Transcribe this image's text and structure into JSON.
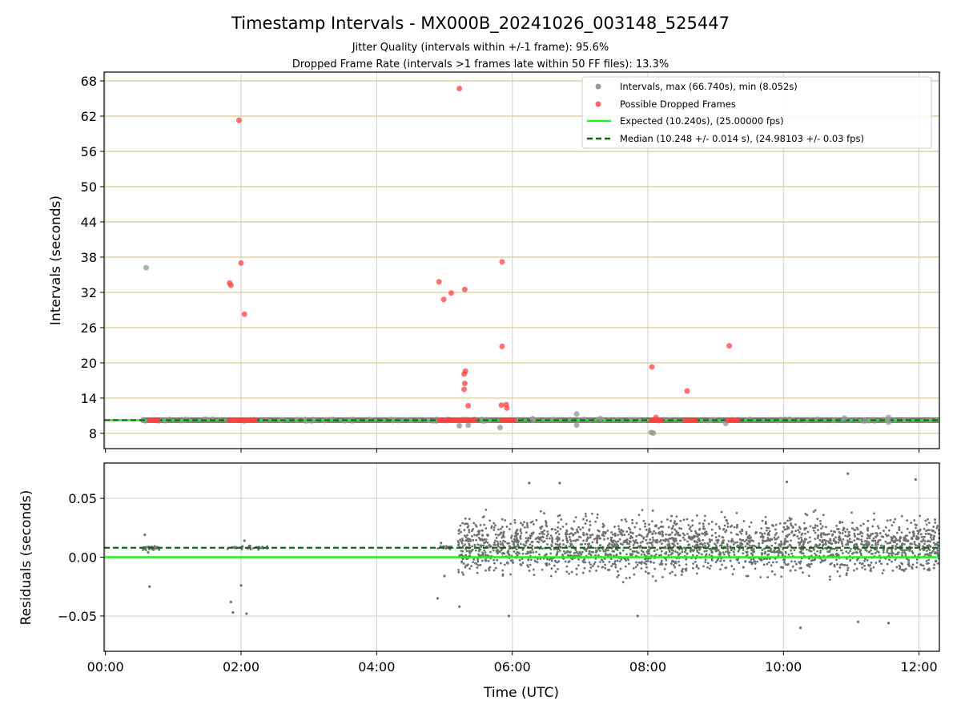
{
  "chart_data": [
    {
      "type": "scatter",
      "title": "Timestamp Intervals - MX000B_20241026_003148_525447",
      "subtitle_lines": [
        "Jitter Quality (intervals within +/-1 frame): 95.6%",
        "Dropped Frame Rate (intervals >1 frames late within 50 FF files): 13.3%"
      ],
      "xlabel": "",
      "ylabel": "Intervals (seconds)",
      "x_unit": "hours UTC",
      "xlim": [
        -0.02,
        12.3
      ],
      "ylim": [
        5.4,
        69.5
      ],
      "yticks": [
        8,
        14,
        20,
        26,
        32,
        38,
        44,
        50,
        56,
        62,
        68
      ],
      "ytick_labels": [
        "8",
        "14",
        "20",
        "26",
        "32",
        "38",
        "44",
        "50",
        "56",
        "62",
        "68"
      ],
      "xticks": [
        0,
        2,
        4,
        6,
        8,
        10,
        12
      ],
      "xtick_labels": [
        "00:00",
        "02:00",
        "04:00",
        "06:00",
        "08:00",
        "10:00",
        "12:00"
      ],
      "show_xtick_labels": false,
      "grid": "x-vertical, y-horizontal golden",
      "legend_position": "top-right",
      "legend": [
        "Intervals, max (66.740s), min (8.052s)",
        "Possible Dropped Frames",
        "Expected (10.240s), (25.00000 fps)",
        "Median (10.248 +/- 0.014 s), (24.98103 +/- 0.03 fps)"
      ],
      "lines": {
        "expected": 10.24,
        "median": 10.248
      },
      "colors": {
        "intervals": "#9a9a9a",
        "dropped": "#ff4040",
        "expected": "#22ee22",
        "median": "#0b6b0b",
        "grid_h": "#d8c78a",
        "grid_v": "#cfcfcf",
        "band": "#5a6a5a"
      },
      "intervals_band": {
        "x_start": 0.55,
        "x_end": 12.3,
        "y": 10.248
      },
      "intervals": [
        {
          "x": 0.6,
          "y": 36.2
        },
        {
          "x": 5.22,
          "y": 9.3
        },
        {
          "x": 5.35,
          "y": 9.4
        },
        {
          "x": 5.82,
          "y": 9.0
        },
        {
          "x": 6.3,
          "y": 10.5
        },
        {
          "x": 6.95,
          "y": 11.3
        },
        {
          "x": 6.95,
          "y": 9.4
        },
        {
          "x": 7.3,
          "y": 10.5
        },
        {
          "x": 8.05,
          "y": 8.15
        },
        {
          "x": 8.08,
          "y": 8.05
        },
        {
          "x": 9.15,
          "y": 9.7
        },
        {
          "x": 10.9,
          "y": 10.6
        },
        {
          "x": 11.55,
          "y": 10.7
        },
        {
          "x": 11.55,
          "y": 9.9
        },
        {
          "x": 11.2,
          "y": 10.1
        }
      ],
      "dropped_clusters": [
        {
          "x0": 0.65,
          "x1": 0.78,
          "y": 10.25
        },
        {
          "x0": 1.82,
          "x1": 2.22,
          "y": 10.25
        },
        {
          "x0": 4.92,
          "x1": 5.48,
          "y": 10.25
        },
        {
          "x0": 5.85,
          "x1": 6.05,
          "y": 10.25
        },
        {
          "x0": 8.05,
          "x1": 8.22,
          "y": 10.25
        },
        {
          "x0": 8.55,
          "x1": 8.72,
          "y": 10.25
        },
        {
          "x0": 9.18,
          "x1": 9.35,
          "y": 10.25
        }
      ],
      "dropped": [
        {
          "x": 1.97,
          "y": 61.3
        },
        {
          "x": 1.83,
          "y": 33.6
        },
        {
          "x": 1.85,
          "y": 33.2
        },
        {
          "x": 2.0,
          "y": 37.0
        },
        {
          "x": 2.05,
          "y": 28.3
        },
        {
          "x": 4.92,
          "y": 33.8
        },
        {
          "x": 4.99,
          "y": 30.8
        },
        {
          "x": 5.1,
          "y": 31.9
        },
        {
          "x": 5.22,
          "y": 66.7
        },
        {
          "x": 5.3,
          "y": 32.5
        },
        {
          "x": 5.29,
          "y": 18.1
        },
        {
          "x": 5.31,
          "y": 18.6
        },
        {
          "x": 5.3,
          "y": 16.5
        },
        {
          "x": 5.29,
          "y": 15.5
        },
        {
          "x": 5.35,
          "y": 12.7
        },
        {
          "x": 5.85,
          "y": 37.2
        },
        {
          "x": 5.85,
          "y": 22.8
        },
        {
          "x": 5.84,
          "y": 12.8
        },
        {
          "x": 5.91,
          "y": 12.9
        },
        {
          "x": 5.92,
          "y": 12.3
        },
        {
          "x": 8.06,
          "y": 19.3
        },
        {
          "x": 8.58,
          "y": 15.2
        },
        {
          "x": 9.2,
          "y": 22.9
        },
        {
          "x": 8.12,
          "y": 10.7
        }
      ]
    },
    {
      "type": "scatter",
      "title": "",
      "xlabel": "Time (UTC)",
      "ylabel": "Residuals (seconds)",
      "xlim": [
        -0.02,
        12.3
      ],
      "ylim": [
        -0.08,
        0.08
      ],
      "yticks": [
        -0.05,
        0.0,
        0.05
      ],
      "ytick_labels": [
        "−0.05",
        "0.00",
        "0.05"
      ],
      "xticks": [
        0,
        2,
        4,
        6,
        8,
        10,
        12
      ],
      "xtick_labels": [
        "00:00",
        "02:00",
        "04:00",
        "06:00",
        "08:00",
        "10:00",
        "12:00"
      ],
      "grid": "both",
      "lines": {
        "expected": 0.0,
        "median": 0.008
      },
      "colors": {
        "points": "#707070",
        "expected": "#22ee22",
        "median": "#0b6b0b",
        "grid": "#cfcfcf"
      },
      "noise_segments": [
        {
          "x0": 0.55,
          "x1": 0.8,
          "center": 0.008,
          "spread": 0.0015,
          "count": 30
        },
        {
          "x0": 1.8,
          "x1": 2.4,
          "center": 0.008,
          "spread": 0.0015,
          "count": 40
        },
        {
          "x0": 4.9,
          "x1": 5.1,
          "center": 0.008,
          "spread": 0.0015,
          "count": 20
        },
        {
          "x0": 5.2,
          "x1": 12.3,
          "center": 0.01,
          "spread": 0.021,
          "count": 2400
        }
      ],
      "outliers": [
        {
          "x": 0.58,
          "y": 0.019
        },
        {
          "x": 0.65,
          "y": -0.025
        },
        {
          "x": 0.63,
          "y": 0.004
        },
        {
          "x": 1.85,
          "y": -0.038
        },
        {
          "x": 1.88,
          "y": -0.047
        },
        {
          "x": 2.0,
          "y": -0.024
        },
        {
          "x": 2.05,
          "y": 0.014
        },
        {
          "x": 2.08,
          "y": -0.048
        },
        {
          "x": 4.9,
          "y": -0.035
        },
        {
          "x": 4.95,
          "y": 0.012
        },
        {
          "x": 5.0,
          "y": -0.016
        },
        {
          "x": 5.22,
          "y": -0.042
        },
        {
          "x": 5.95,
          "y": -0.05
        },
        {
          "x": 6.25,
          "y": 0.063
        },
        {
          "x": 6.7,
          "y": 0.063
        },
        {
          "x": 7.85,
          "y": -0.05
        },
        {
          "x": 10.05,
          "y": 0.064
        },
        {
          "x": 10.25,
          "y": -0.06
        },
        {
          "x": 10.95,
          "y": 0.071
        },
        {
          "x": 11.1,
          "y": -0.055
        },
        {
          "x": 11.55,
          "y": -0.056
        },
        {
          "x": 11.95,
          "y": 0.066
        }
      ]
    }
  ]
}
